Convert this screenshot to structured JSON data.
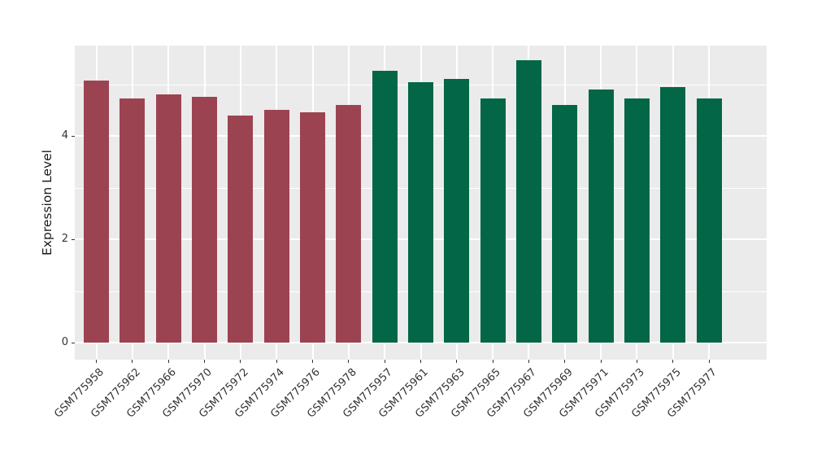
{
  "figure": {
    "background": "#FFFFFF",
    "panel_background": "#EBEBEB",
    "grid_color": "#FFFFFF",
    "axis_text_color": "#333333",
    "tick_mark_color": "#333333"
  },
  "chart_data": {
    "type": "bar",
    "title": "",
    "xlabel": "",
    "ylabel": "Expression Level",
    "ylim": [
      0,
      5.75
    ],
    "yticks": [
      0,
      2,
      4
    ],
    "minor_grid_values": [
      1,
      3,
      5
    ],
    "grid": "major and minor horizontal white lines plus vertical white lines at each category, on gray panel",
    "legend_position": "none",
    "x_tick_label_rotation_deg": 45,
    "bar_width_fraction": 0.7,
    "group_colors": {
      "left": "#9C4351",
      "right": "#026647"
    },
    "bars": [
      {
        "label": "GSM775958",
        "value": 5.07,
        "group": "left"
      },
      {
        "label": "GSM775962",
        "value": 4.73,
        "group": "left"
      },
      {
        "label": "GSM775966",
        "value": 4.81,
        "group": "left"
      },
      {
        "label": "GSM775970",
        "value": 4.76,
        "group": "left"
      },
      {
        "label": "GSM775972",
        "value": 4.4,
        "group": "left"
      },
      {
        "label": "GSM775974",
        "value": 4.5,
        "group": "left"
      },
      {
        "label": "GSM775976",
        "value": 4.45,
        "group": "left"
      },
      {
        "label": "GSM775978",
        "value": 4.6,
        "group": "left"
      },
      {
        "label": "GSM775957",
        "value": 5.26,
        "group": "right"
      },
      {
        "label": "GSM775961",
        "value": 5.04,
        "group": "right"
      },
      {
        "label": "GSM775963",
        "value": 5.1,
        "group": "right"
      },
      {
        "label": "GSM775965",
        "value": 4.73,
        "group": "right"
      },
      {
        "label": "GSM775967",
        "value": 5.46,
        "group": "right"
      },
      {
        "label": "GSM775969",
        "value": 4.6,
        "group": "right"
      },
      {
        "label": "GSM775971",
        "value": 4.9,
        "group": "right"
      },
      {
        "label": "GSM775973",
        "value": 4.72,
        "group": "right"
      },
      {
        "label": "GSM775975",
        "value": 4.94,
        "group": "right"
      },
      {
        "label": "GSM775977",
        "value": 4.72,
        "group": "right"
      }
    ]
  }
}
